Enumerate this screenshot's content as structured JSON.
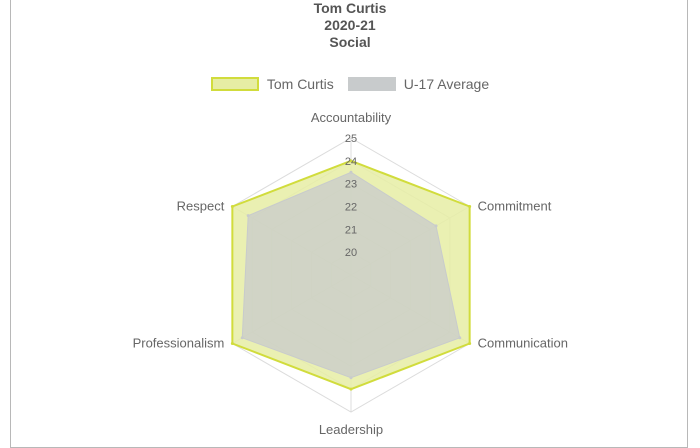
{
  "chart_data": {
    "type": "radar",
    "title_lines": [
      "Tom Curtis",
      "2020-21",
      "Social"
    ],
    "axes": [
      "Accountability",
      "Commitment",
      "Communication",
      "Leadership",
      "Professionalism",
      "Respect"
    ],
    "r_ticks": [
      20,
      21,
      22,
      23,
      24,
      25
    ],
    "r_range": [
      19,
      25
    ],
    "series": [
      {
        "name": "Tom Curtis",
        "values": [
          24,
          25,
          25,
          24,
          25,
          25
        ],
        "fill": "#e6eda4",
        "stroke": "#d1dc3c"
      },
      {
        "name": "U-17 Average",
        "values": [
          23.5,
          23.3,
          24.5,
          23.5,
          24.5,
          24.2
        ],
        "fill": "#c8cbcc",
        "stroke": "#c8cbcc"
      }
    ],
    "legend_position": "top",
    "grid": true
  }
}
